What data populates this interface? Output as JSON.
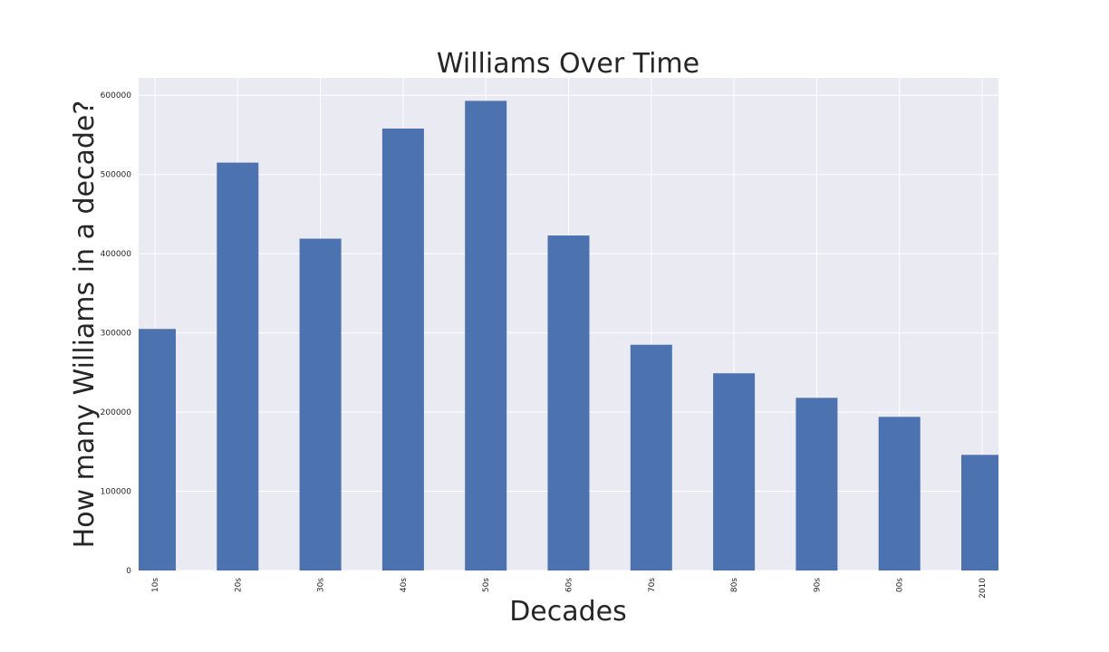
{
  "chart_data": {
    "type": "bar",
    "title": "Williams Over Time",
    "xlabel": "Decades",
    "ylabel": "How many Williams in a decade?",
    "categories": [
      "10s",
      "20s",
      "30s",
      "40s",
      "50s",
      "60s",
      "70s",
      "80s",
      "90s",
      "00s",
      "2010"
    ],
    "values": [
      305000,
      515000,
      419000,
      558000,
      593000,
      423000,
      285000,
      249000,
      218000,
      194000,
      146000
    ],
    "ylim": [
      0,
      622000
    ],
    "yticks": [
      0,
      100000,
      200000,
      300000,
      400000,
      500000,
      600000
    ],
    "ytick_labels": [
      "0",
      "100000",
      "200000",
      "300000",
      "400000",
      "500000",
      "600000"
    ],
    "grid": true,
    "colors": {
      "bar": "#4c72b0",
      "plot_background": "#eaeaf2",
      "grid": "#ffffff",
      "text": "#262626"
    }
  }
}
